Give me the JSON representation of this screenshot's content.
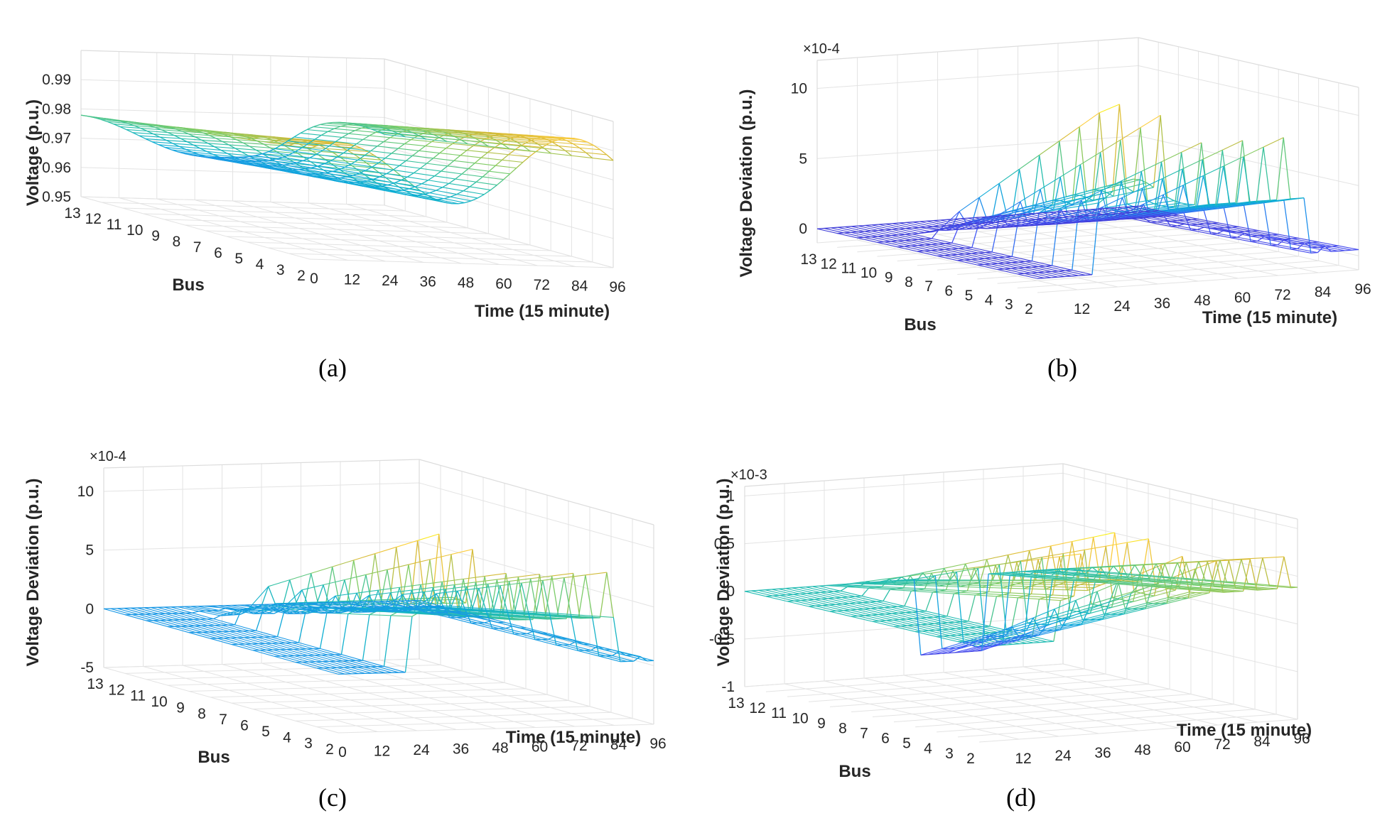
{
  "chart_data": [
    {
      "id": "a",
      "type": "mesh3d",
      "caption": "(a)",
      "xlabel": "Time (15 minute)",
      "ylabel": "Bus",
      "zlabel": "Voltage (p.u.)",
      "z_exponent": "",
      "xticks": [
        "0",
        "12",
        "24",
        "36",
        "48",
        "60",
        "72",
        "84",
        "96"
      ],
      "yticks": [
        "2",
        "3",
        "4",
        "5",
        "6",
        "7",
        "8",
        "9",
        "10",
        "11",
        "12",
        "13"
      ],
      "zticks": [
        "0.95",
        "0.96",
        "0.97",
        "0.98",
        "0.99"
      ],
      "xlim": [
        0,
        96
      ],
      "ylim": [
        2,
        13
      ],
      "zlim": [
        0.95,
        1.0
      ]
    },
    {
      "id": "b",
      "type": "mesh3d",
      "caption": "(b)",
      "xlabel": "Time (15 minute)",
      "ylabel": "Bus",
      "zlabel": "Voltage Deviation (p.u.)",
      "z_exponent": "×10-4",
      "xticks": [
        "12",
        "24",
        "36",
        "48",
        "60",
        "72",
        "84",
        "96"
      ],
      "yticks": [
        "2",
        "3",
        "4",
        "5",
        "6",
        "7",
        "8",
        "9",
        "10",
        "11",
        "12",
        "13"
      ],
      "zticks": [
        "0",
        "5",
        "10"
      ],
      "xlim": [
        0,
        96
      ],
      "ylim": [
        2,
        13
      ],
      "zlim": [
        -1,
        12
      ]
    },
    {
      "id": "c",
      "type": "mesh3d",
      "caption": "(c)",
      "xlabel": "Time (15 minute)",
      "ylabel": "Bus",
      "zlabel": "Voltage Deviation (p.u.)",
      "z_exponent": "×10-4",
      "xticks": [
        "0",
        "12",
        "24",
        "36",
        "48",
        "60",
        "72",
        "84",
        "96"
      ],
      "yticks": [
        "2",
        "3",
        "4",
        "5",
        "6",
        "7",
        "8",
        "9",
        "10",
        "11",
        "12",
        "13"
      ],
      "zticks": [
        "-5",
        "0",
        "5",
        "10"
      ],
      "xlim": [
        0,
        96
      ],
      "ylim": [
        2,
        13
      ],
      "zlim": [
        -5,
        12
      ]
    },
    {
      "id": "d",
      "type": "mesh3d",
      "caption": "(d)",
      "xlabel": "Time (15 minute)",
      "ylabel": "Bus",
      "zlabel": "Voltage Deviation (p.u.)",
      "z_exponent": "×10-3",
      "xticks": [
        "12",
        "24",
        "36",
        "48",
        "60",
        "72",
        "84",
        "96"
      ],
      "yticks": [
        "2",
        "3",
        "4",
        "5",
        "6",
        "7",
        "8",
        "9",
        "10",
        "11",
        "12",
        "13"
      ],
      "zticks": [
        "-1",
        "-0.5",
        "0",
        "0.5",
        "1"
      ],
      "xlim": [
        0,
        96
      ],
      "ylim": [
        2,
        13
      ],
      "zlim": [
        -1,
        1.1
      ]
    }
  ]
}
